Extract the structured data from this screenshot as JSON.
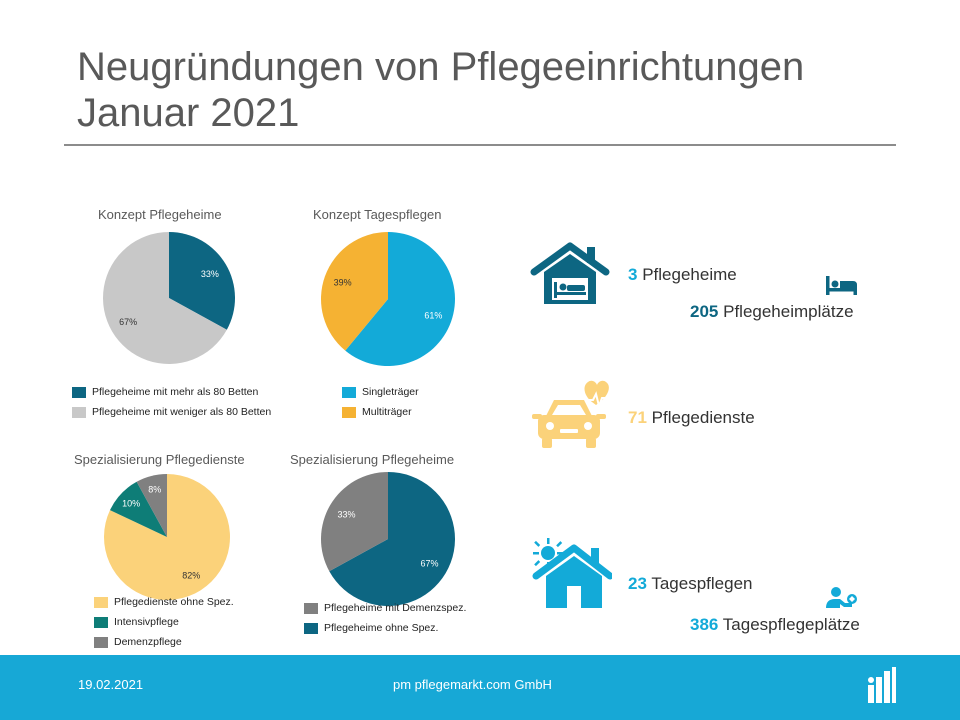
{
  "header": {
    "title_line1": "Neugründungen von Pflegeeinrichtungen",
    "title_line2": "Januar 2021"
  },
  "colors": {
    "dark_teal": "#0d6682",
    "light_gray": "#c8c8c8",
    "light_blue": "#13aad8",
    "orange": "#f5b233",
    "light_yellow": "#fbd27a",
    "teal_green": "#0e7d77",
    "mid_gray": "#808080",
    "footer_blue": "#17a8d6"
  },
  "chart_data": [
    {
      "type": "pie",
      "title": "Konzept Pflegeheime",
      "slices": [
        {
          "label": "Pflegeheime mit mehr als 80 Betten",
          "value": 33,
          "display": "33%",
          "color": "#0d6682"
        },
        {
          "label": "Pflegeheime mit weniger als 80 Betten",
          "value": 67,
          "display": "67%",
          "color": "#c8c8c8"
        }
      ],
      "legend_order": [
        0,
        1
      ]
    },
    {
      "type": "pie",
      "title": "Konzept Tagespflegen",
      "slices": [
        {
          "label": "Singleträger",
          "value": 61,
          "display": "61%",
          "color": "#13aad8"
        },
        {
          "label": "Multiträger",
          "value": 39,
          "display": "39%",
          "color": "#f5b233"
        }
      ],
      "legend_order": [
        0,
        1
      ]
    },
    {
      "type": "pie",
      "title": "Spezialisierung Pflegedienste",
      "slices": [
        {
          "label": "Pflegedienste ohne Spez.",
          "value": 82,
          "display": "82%",
          "color": "#fbd27a"
        },
        {
          "label": "Intensivpflege",
          "value": 10,
          "display": "10%",
          "color": "#0e7d77"
        },
        {
          "label": "Demenzpflege",
          "value": 8,
          "display": "8%",
          "color": "#808080"
        }
      ],
      "legend_order": [
        0,
        1,
        2
      ]
    },
    {
      "type": "pie",
      "title": "Spezialisierung Pflegeheime",
      "slices": [
        {
          "label": "Pflegeheime ohne Spez.",
          "value": 67,
          "display": "67%",
          "color": "#0d6682"
        },
        {
          "label": "Pflegeheime mit Demenzspez.",
          "value": 33,
          "display": "33%",
          "color": "#808080"
        }
      ],
      "legend_order": [
        1,
        0
      ]
    }
  ],
  "stats": {
    "pflegeheime": {
      "number": "3",
      "label": "Pflegeheime",
      "icon": "nursing-home-icon",
      "color": "#13aad8"
    },
    "pflegeheimplaetze": {
      "number": "205",
      "label": "Pflegeheimplätze",
      "icon": "bed-icon",
      "color": "#13aad8"
    },
    "pflegedienste": {
      "number": "71",
      "label": "Pflegedienste",
      "icon": "care-car-icon",
      "color": "#fbd27a"
    },
    "tagespflegen": {
      "number": "23",
      "label": "Tagespflegen",
      "icon": "day-care-house-icon",
      "color": "#13aad8"
    },
    "tagespflegeplaetze": {
      "number": "386",
      "label": "Tagespflegeplätze",
      "icon": "caregiver-icon",
      "color": "#13aad8"
    }
  },
  "footer": {
    "date": "19.02.2021",
    "company": "pm pflegemarkt.com GmbH",
    "logo_icon": "pflegemarkt-logo-icon"
  }
}
